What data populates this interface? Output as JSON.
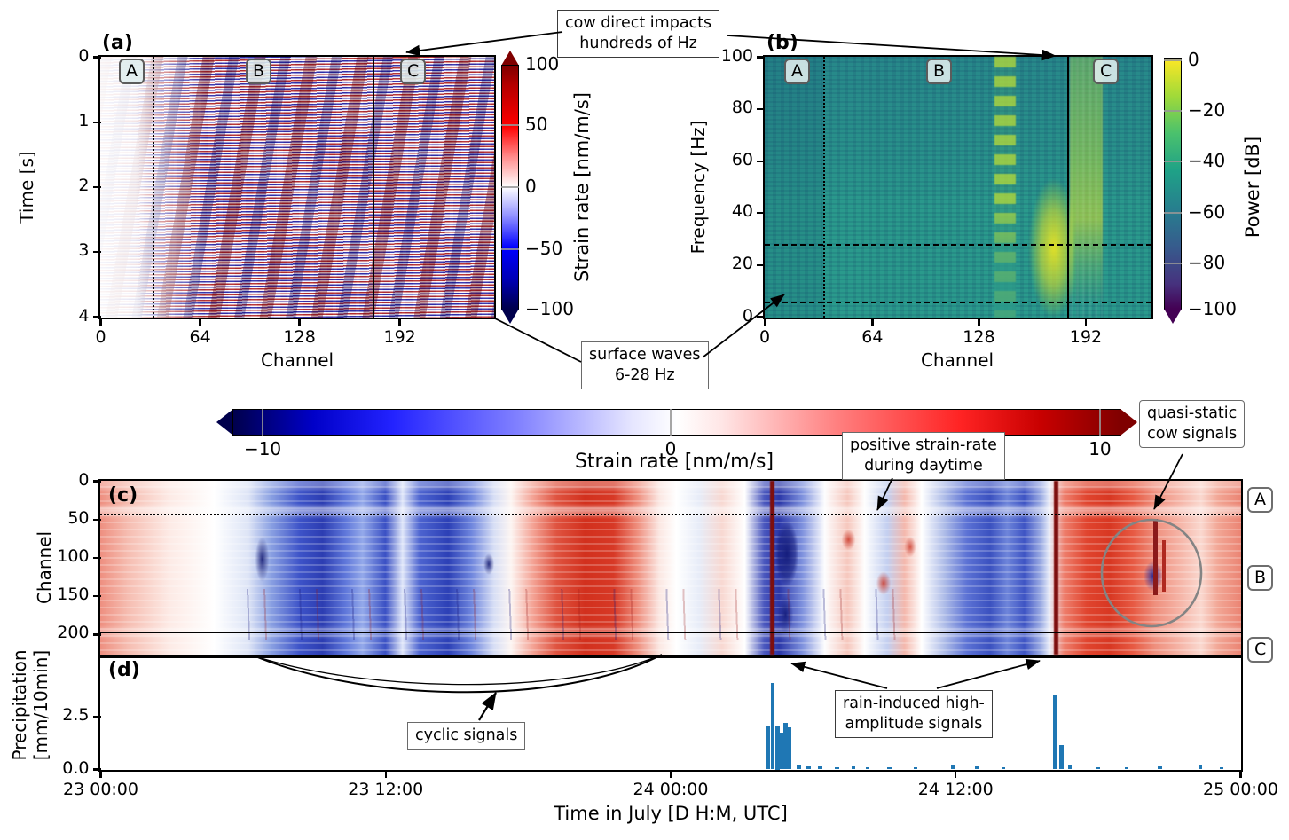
{
  "figure": {
    "panels": {
      "a": {
        "label": "(a)",
        "xlabel": "Channel",
        "ylabel": "Time [s]",
        "xticks": [
          "0",
          "64",
          "128",
          "192"
        ],
        "yticks": [
          "0",
          "1",
          "2",
          "3",
          "4"
        ],
        "zones": [
          "A",
          "B",
          "C"
        ]
      },
      "b": {
        "label": "(b)",
        "xlabel": "Channel",
        "ylabel": "Frequency [Hz]",
        "xticks": [
          "0",
          "64",
          "128",
          "192"
        ],
        "yticks": [
          "100",
          "80",
          "60",
          "40",
          "20",
          "0"
        ],
        "zones": [
          "A",
          "B",
          "C"
        ]
      },
      "c": {
        "label": "(c)",
        "ylabel": "Channel",
        "yticks": [
          "0",
          "50",
          "100",
          "150",
          "200"
        ],
        "zones": [
          "A",
          "B",
          "C"
        ]
      },
      "d": {
        "label": "(d)",
        "ylabel_line1": "Precipitation",
        "ylabel_line2": "[mm/10min]",
        "yticks": [
          "2.5",
          "0.0"
        ],
        "xticks": [
          "23 00:00",
          "23 12:00",
          "24 00:00",
          "24 12:00",
          "25 00:00"
        ],
        "xlabel": "Time in July [D H:M, UTC]"
      }
    },
    "colorbars": {
      "strain_a": {
        "label": "Strain rate [nm/m/s]",
        "ticks": [
          "100",
          "50",
          "0",
          "−50",
          "−100"
        ]
      },
      "power_b": {
        "label": "Power [dB]",
        "ticks": [
          "0",
          "−20",
          "−40",
          "−60",
          "−80",
          "−100"
        ]
      },
      "strain_c": {
        "label": "Strain rate [nm/m/s]",
        "ticks": [
          "−10",
          "0",
          "10"
        ]
      }
    },
    "annotations": {
      "cow_impacts": {
        "line1": "cow direct impacts",
        "line2": "hundreds of Hz"
      },
      "surface_waves": {
        "line1": "surface waves",
        "line2": "6-28 Hz"
      },
      "positive_strain": {
        "line1": "positive strain-rate",
        "line2": "during daytime"
      },
      "quasi_static": {
        "line1": "quasi-static",
        "line2": "cow signals"
      },
      "rain_induced": {
        "line1": "rain-induced high-",
        "line2": "amplitude signals"
      },
      "cyclic": {
        "line1": "cyclic signals"
      }
    },
    "colors": {
      "precip_bar": "#1f77b4",
      "seismic_neg": "#00004c",
      "seismic_pos": "#7f0000",
      "viridis_min": "#440154",
      "viridis_max": "#fde725"
    }
  },
  "chart_data": [
    {
      "id": "a",
      "type": "heatmap",
      "title": "(a)",
      "xlabel": "Channel",
      "ylabel": "Time [s]",
      "x_range": [
        0,
        253
      ],
      "y_range": [
        0,
        4
      ],
      "colormap": "seismic (blue-white-red)",
      "colorbar_label": "Strain rate [nm/m/s]",
      "colorbar_range": [
        -100,
        100
      ],
      "colorbar_ticks": [
        100,
        50,
        0,
        -50,
        -100
      ],
      "section_boundaries": {
        "dotted_vline_channel": 34,
        "solid_vline_channel": 175
      },
      "zones": [
        "A",
        "B",
        "C"
      ],
      "features": [
        "low-amplitude signals in zone A (channels 0-34)",
        "dense high-amplitude red/blue oscillations in zones B and C",
        "cow direct impacts visible near the zone B/C boundary"
      ]
    },
    {
      "id": "b",
      "type": "heatmap",
      "title": "(b)",
      "xlabel": "Channel",
      "ylabel": "Frequency [Hz]",
      "x_range": [
        0,
        226
      ],
      "y_range": [
        0,
        100
      ],
      "colormap": "viridis",
      "colorbar_label": "Power [dB]",
      "colorbar_range": [
        -100,
        0
      ],
      "colorbar_ticks": [
        0,
        -20,
        -40,
        -60,
        -80,
        -100
      ],
      "dashed_hline_frequencies_hz": [
        6,
        28
      ],
      "section_boundaries": {
        "dotted_vline_channel": 35,
        "solid_vline_channel": 179
      },
      "zones": [
        "A",
        "B",
        "C"
      ],
      "features": [
        "surface-wave energy band between 6 and 28 Hz across most channels",
        "cow direct impacts: bright blotchy column near channels 135-150 reaching hundreds of Hz",
        "strong low-frequency power near channels 160-200"
      ]
    },
    {
      "id": "c",
      "type": "heatmap",
      "title": "(c)",
      "xlabel": "Time in July [D H:M, UTC]",
      "ylabel": "Channel",
      "x_range": [
        "23 00:00",
        "25 00:00"
      ],
      "y_range": [
        0,
        225
      ],
      "colormap": "seismic (blue-white-red)",
      "colorbar_label": "Strain rate [nm/m/s]",
      "colorbar_range": [
        -10,
        10
      ],
      "section_boundaries": {
        "dotted_hline_channel": 42,
        "solid_hline_channel": 196
      },
      "zones": [
        "A",
        "B",
        "C"
      ],
      "features": [
        "positive (red) strain rate during daytime",
        "negative (blue) strain rate during night-time",
        "cyclic diurnal signals on 23 July",
        "rain-induced high-amplitude vertical streaks near 24 04:20 and 24 16:15",
        "quasi-static cow signals circled near 24 19:00-21:00, channels ~50-170"
      ]
    },
    {
      "id": "d",
      "type": "bar",
      "title": "(d)",
      "xlabel": "Time in July [D H:M, UTC]",
      "ylabel": "Precipitation [mm/10min]",
      "x_unit": "hours after 23 00:00 UTC",
      "bin_minutes": 10,
      "ylim": [
        0,
        5.25
      ],
      "yticks": [
        0.0,
        2.5
      ],
      "bar_color": "#1f77b4",
      "bars": [
        {
          "t": 28.1,
          "v": 2.05
        },
        {
          "t": 28.3,
          "v": 4.1
        },
        {
          "t": 28.5,
          "v": 2.1
        },
        {
          "t": 28.67,
          "v": 1.75
        },
        {
          "t": 28.83,
          "v": 2.2
        },
        {
          "t": 29.0,
          "v": 2.0
        },
        {
          "t": 29.4,
          "v": 0.2
        },
        {
          "t": 29.8,
          "v": 0.15
        },
        {
          "t": 30.3,
          "v": 0.15
        },
        {
          "t": 31.0,
          "v": 0.1
        },
        {
          "t": 31.7,
          "v": 0.15
        },
        {
          "t": 32.3,
          "v": 0.1
        },
        {
          "t": 33.2,
          "v": 0.1
        },
        {
          "t": 34.3,
          "v": 0.1
        },
        {
          "t": 35.9,
          "v": 0.25
        },
        {
          "t": 36.9,
          "v": 0.15
        },
        {
          "t": 38.0,
          "v": 0.1
        },
        {
          "t": 40.2,
          "v": 3.5
        },
        {
          "t": 40.45,
          "v": 1.15
        },
        {
          "t": 40.8,
          "v": 0.2
        },
        {
          "t": 42.0,
          "v": 0.1
        },
        {
          "t": 43.2,
          "v": 0.1
        },
        {
          "t": 44.6,
          "v": 0.15
        },
        {
          "t": 46.3,
          "v": 0.2
        },
        {
          "t": 47.2,
          "v": 0.1
        }
      ]
    }
  ]
}
